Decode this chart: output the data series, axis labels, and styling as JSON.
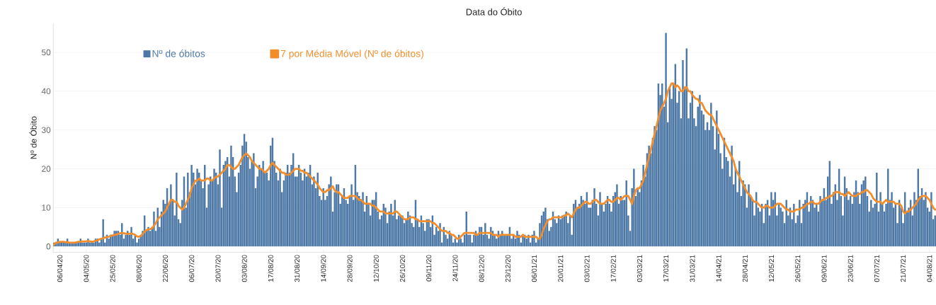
{
  "chart_data": {
    "type": "bar",
    "title": "Data do Óbito",
    "ylabel": "Nº de Óbito",
    "categories": [
      null,
      null,
      null,
      "06/04/20",
      null,
      null,
      null,
      null,
      null,
      null,
      null,
      null,
      null,
      null,
      null,
      null,
      null,
      "04/05/20",
      null,
      null,
      null,
      null,
      null,
      null,
      null,
      null,
      null,
      null,
      null,
      null,
      null,
      "25/05/20",
      null,
      null,
      null,
      null,
      null,
      null,
      null,
      null,
      null,
      null,
      null,
      null,
      null,
      "08/06/20",
      null,
      null,
      null,
      null,
      null,
      null,
      null,
      null,
      null,
      null,
      null,
      null,
      null,
      "22/06/20",
      null,
      null,
      null,
      null,
      null,
      null,
      null,
      null,
      null,
      null,
      null,
      null,
      null,
      "06/07/20",
      null,
      null,
      null,
      null,
      null,
      null,
      null,
      null,
      null,
      null,
      null,
      null,
      null,
      "20/07/20",
      null,
      null,
      null,
      null,
      null,
      null,
      null,
      null,
      null,
      null,
      null,
      null,
      null,
      "03/08/20",
      null,
      null,
      null,
      null,
      null,
      null,
      null,
      null,
      null,
      null,
      null,
      null,
      null,
      "17/08/20",
      null,
      null,
      null,
      null,
      null,
      null,
      null,
      null,
      null,
      null,
      null,
      null,
      null,
      "31/08/20",
      null,
      null,
      null,
      null,
      null,
      null,
      null,
      null,
      null,
      null,
      null,
      null,
      null,
      "14/09/20",
      null,
      null,
      null,
      null,
      null,
      null,
      null,
      null,
      null,
      null,
      null,
      null,
      null,
      "28/09/20",
      null,
      null,
      null,
      null,
      null,
      null,
      null,
      null,
      null,
      null,
      null,
      null,
      null,
      "12/10/20",
      null,
      null,
      null,
      null,
      null,
      null,
      null,
      null,
      null,
      null,
      null,
      null,
      null,
      "26/10/20",
      null,
      null,
      null,
      null,
      null,
      null,
      null,
      null,
      null,
      null,
      null,
      null,
      null,
      "09/11/20",
      null,
      null,
      null,
      null,
      null,
      null,
      null,
      null,
      null,
      null,
      null,
      null,
      null,
      "24/11/20",
      null,
      null,
      null,
      null,
      null,
      null,
      null,
      null,
      null,
      null,
      null,
      null,
      null,
      "08/12/20",
      null,
      null,
      null,
      null,
      null,
      null,
      null,
      null,
      null,
      null,
      null,
      null,
      null,
      "23/12/20",
      null,
      null,
      null,
      null,
      null,
      null,
      null,
      null,
      null,
      null,
      null,
      null,
      null,
      "06/01/21",
      null,
      null,
      null,
      null,
      null,
      null,
      null,
      null,
      null,
      null,
      null,
      null,
      null,
      "20/01/21",
      null,
      null,
      null,
      null,
      null,
      null,
      null,
      null,
      null,
      null,
      null,
      null,
      null,
      "03/02/21",
      null,
      null,
      null,
      null,
      null,
      null,
      null,
      null,
      null,
      null,
      null,
      null,
      null,
      "17/02/21",
      null,
      null,
      null,
      null,
      null,
      null,
      null,
      null,
      null,
      null,
      null,
      null,
      null,
      "03/03/21",
      null,
      null,
      null,
      null,
      null,
      null,
      null,
      null,
      null,
      null,
      null,
      null,
      null,
      "17/03/21",
      null,
      null,
      null,
      null,
      null,
      null,
      null,
      null,
      null,
      null,
      null,
      null,
      null,
      "31/03/21",
      null,
      null,
      null,
      null,
      null,
      null,
      null,
      null,
      null,
      null,
      null,
      null,
      null,
      "14/04/21",
      null,
      null,
      null,
      null,
      null,
      null,
      null,
      null,
      null,
      null,
      null,
      null,
      null,
      "28/04/21",
      null,
      null,
      null,
      null,
      null,
      null,
      null,
      null,
      null,
      null,
      null,
      null,
      null,
      "12/05/21",
      null,
      null,
      null,
      null,
      null,
      null,
      null,
      null,
      null,
      null,
      null,
      null,
      null,
      "26/05/21",
      null,
      null,
      null,
      null,
      null,
      null,
      null,
      null,
      null,
      null,
      null,
      null,
      null,
      "09/06/21",
      null,
      null,
      null,
      null,
      null,
      null,
      null,
      null,
      null,
      null,
      null,
      null,
      null,
      "23/06/21",
      null,
      null,
      null,
      null,
      null,
      null,
      null,
      null,
      null,
      null,
      null,
      null,
      null,
      "07/07/21",
      null,
      null,
      null,
      null,
      null,
      null,
      null,
      null,
      null,
      null,
      null,
      null,
      null,
      "21/07/21",
      null,
      null,
      null,
      null,
      null,
      null,
      null,
      null,
      null,
      null,
      null,
      null,
      null,
      "04/08/21",
      null,
      null,
      null
    ],
    "series": [
      {
        "name": "Nº de óbitos",
        "color": "#4e79a7",
        "values": [
          1,
          1,
          2,
          1,
          1,
          1,
          1,
          2,
          1,
          1,
          1,
          1,
          1,
          1,
          2,
          1,
          1,
          1,
          2,
          1,
          1,
          1,
          2,
          2,
          1,
          2,
          7,
          1,
          3,
          2,
          3,
          3,
          4,
          4,
          4,
          3,
          6,
          2,
          3,
          4,
          3,
          5,
          2,
          3,
          1,
          2,
          3,
          4,
          8,
          4,
          5,
          4,
          5,
          9,
          4,
          10,
          5,
          9,
          12,
          11,
          15,
          11,
          16,
          12,
          8,
          19,
          7,
          6,
          12,
          18,
          10,
          19,
          14,
          21,
          19,
          16,
          20,
          19,
          17,
          15,
          21,
          10,
          16,
          18,
          17,
          20,
          19,
          16,
          25,
          10,
          21,
          22,
          23,
          18,
          26,
          23,
          18,
          14,
          19,
          21,
          26,
          29,
          27,
          23,
          20,
          22,
          24,
          15,
          18,
          21,
          20,
          22,
          19,
          19,
          17,
          26,
          28,
          22,
          19,
          17,
          20,
          14,
          17,
          19,
          21,
          19,
          21,
          24,
          18,
          18,
          21,
          19,
          17,
          20,
          18,
          19,
          21,
          16,
          18,
          15,
          19,
          13,
          12,
          15,
          12,
          13,
          16,
          18,
          9,
          14,
          16,
          16,
          11,
          13,
          15,
          12,
          11,
          13,
          16,
          12,
          21,
          14,
          13,
          12,
          14,
          9,
          13,
          11,
          8,
          12,
          12,
          14,
          9,
          7,
          8,
          11,
          10,
          6,
          9,
          11,
          8,
          12,
          7,
          8,
          8,
          8,
          6,
          7,
          9,
          8,
          6,
          5,
          12,
          7,
          5,
          8,
          6,
          4,
          7,
          7,
          5,
          8,
          3,
          5,
          4,
          6,
          1,
          5,
          3,
          2,
          4,
          3,
          1,
          2,
          1,
          3,
          2,
          1,
          3,
          9,
          3,
          3,
          1,
          3,
          4,
          3,
          5,
          5,
          3,
          6,
          3,
          2,
          5,
          4,
          3,
          2,
          4,
          3,
          4,
          3,
          3,
          3,
          5,
          2,
          3,
          2,
          4,
          3,
          1,
          3,
          3,
          2,
          3,
          1,
          3,
          4,
          1,
          2,
          6,
          8,
          9,
          10,
          7,
          4,
          5,
          9,
          7,
          6,
          8,
          7,
          8,
          8,
          9,
          6,
          8,
          3,
          11,
          12,
          10,
          11,
          13,
          12,
          11,
          14,
          10,
          10,
          12,
          15,
          11,
          8,
          14,
          11,
          9,
          11,
          13,
          11,
          9,
          13,
          14,
          16,
          11,
          13,
          12,
          12,
          17,
          8,
          4,
          15,
          20,
          13,
          15,
          14,
          17,
          21,
          18,
          24,
          26,
          24,
          28,
          31,
          30,
          42,
          39,
          42,
          36,
          55,
          32,
          41,
          38,
          42,
          47,
          37,
          40,
          33,
          48,
          41,
          51,
          33,
          37,
          40,
          33,
          31,
          36,
          39,
          35,
          34,
          30,
          32,
          30,
          37,
          31,
          25,
          35,
          29,
          24,
          20,
          28,
          23,
          22,
          18,
          26,
          16,
          20,
          14,
          22,
          13,
          17,
          16,
          10,
          16,
          13,
          12,
          8,
          14,
          10,
          9,
          11,
          6,
          11,
          12,
          8,
          14,
          12,
          14,
          8,
          11,
          10,
          9,
          6,
          12,
          8,
          10,
          7,
          11,
          6,
          8,
          12,
          6,
          11,
          12,
          14,
          9,
          13,
          12,
          10,
          11,
          9,
          13,
          12,
          15,
          12,
          18,
          22,
          11,
          14,
          16,
          12,
          20,
          13,
          8,
          18,
          15,
          12,
          13,
          11,
          14,
          17,
          14,
          11,
          16,
          17,
          18,
          13,
          9,
          12,
          10,
          11,
          19,
          9,
          14,
          11,
          9,
          11,
          20,
          12,
          14,
          10,
          11,
          6,
          12,
          10,
          6,
          14,
          9,
          10,
          12,
          8,
          14,
          12,
          20,
          13,
          15,
          12,
          14,
          10,
          9,
          14,
          7,
          8
        ]
      },
      {
        "name": "7 por Média Móvel (Nº de óbitos)",
        "type": "line",
        "color": "#f28e2b",
        "values": [
          0.5,
          1,
          1,
          1.2,
          1.2,
          1.2,
          1.1,
          1.1,
          1,
          1,
          1,
          1,
          1.1,
          1.2,
          1.2,
          1.3,
          1.3,
          1.3,
          1.4,
          1.3,
          1.2,
          1.3,
          1.5,
          1.6,
          1.8,
          2,
          2.1,
          2.3,
          2.4,
          2.5,
          2.7,
          2.8,
          3,
          3.1,
          3.2,
          3.4,
          3.5,
          3.4,
          3.3,
          3.2,
          3.3,
          3.3,
          3.2,
          3,
          2.6,
          2.5,
          2.7,
          3.2,
          3.8,
          4.2,
          4.4,
          4.5,
          4.7,
          5.3,
          6,
          7,
          7.5,
          8,
          8.5,
          9,
          10,
          11,
          12,
          12,
          11.5,
          11.5,
          10.5,
          10,
          9.5,
          10,
          11,
          12,
          13,
          15,
          16,
          17,
          17,
          17.5,
          17,
          17,
          17,
          17.5,
          17.5,
          17,
          17,
          17.5,
          18,
          18,
          18.5,
          19,
          19.5,
          20,
          21,
          21,
          20.5,
          20,
          20,
          20.5,
          21,
          22,
          23,
          23.5,
          24,
          23.5,
          23,
          22,
          21.5,
          21,
          20.5,
          20,
          20,
          19.5,
          19,
          19.5,
          20,
          21,
          21.5,
          21,
          20.5,
          20,
          19.5,
          19,
          19,
          18.5,
          18.5,
          18.5,
          19,
          19.5,
          20,
          20,
          20,
          19.5,
          19.5,
          19,
          19,
          18.5,
          18,
          17.5,
          17,
          16.5,
          16,
          15,
          14.5,
          14,
          14,
          14.5,
          14.5,
          15,
          15.5,
          14.5,
          14,
          14,
          13.5,
          13,
          12.5,
          12.5,
          12.5,
          13,
          13,
          13,
          13,
          12.5,
          12,
          12,
          11.5,
          11,
          11,
          11,
          11,
          10.5,
          10.5,
          10,
          9.5,
          9,
          9,
          9,
          8.5,
          8.5,
          8.5,
          8.5,
          8.5,
          9,
          9,
          8.5,
          8,
          7.5,
          7,
          7,
          7,
          7.5,
          7.5,
          7.5,
          7,
          7,
          6.5,
          6.5,
          6.5,
          6.5,
          6.5,
          6.5,
          6.5,
          6,
          6,
          5.5,
          5,
          4.5,
          4,
          4,
          4,
          3.5,
          3.5,
          3,
          3,
          2.5,
          2,
          2,
          2.5,
          3,
          3.5,
          3.5,
          3.5,
          3.5,
          3.5,
          3.5,
          3,
          3,
          3.5,
          3.5,
          3.5,
          3.5,
          3.5,
          3.5,
          3.5,
          3,
          3,
          3,
          2.5,
          3,
          3,
          3,
          3,
          3,
          3,
          3,
          3,
          2.5,
          2.5,
          2.5,
          2.5,
          3,
          2.5,
          2.5,
          2.5,
          2.5,
          2.5,
          2.5,
          2.5,
          2,
          2,
          3,
          4.5,
          5.5,
          6.5,
          7,
          7,
          7.5,
          7.5,
          7.5,
          7.5,
          7.5,
          7.5,
          8,
          8,
          8.5,
          8,
          7.5,
          8.5,
          9.5,
          10,
          10,
          10.5,
          11,
          11.5,
          11.5,
          11,
          11,
          11.5,
          12,
          12,
          11.5,
          11,
          11,
          11,
          11.5,
          12,
          12,
          11.5,
          11.5,
          12,
          12.5,
          12.5,
          12,
          12.5,
          13,
          13,
          13,
          12,
          11,
          13,
          14.5,
          15,
          15,
          16,
          17,
          19,
          21,
          23,
          25,
          27,
          29,
          31,
          33,
          35,
          36,
          37,
          38,
          40,
          41,
          42,
          42,
          41,
          41.5,
          41,
          40,
          40,
          41,
          41,
          40,
          40,
          39,
          38.5,
          38,
          38,
          37,
          37,
          36,
          35,
          34.5,
          34,
          34,
          33,
          32,
          31,
          30,
          29,
          28,
          27,
          26,
          25,
          24,
          23,
          22,
          20,
          19,
          18,
          17,
          16,
          15,
          14,
          13.5,
          13,
          12,
          11.5,
          11.5,
          11,
          10.5,
          10,
          10,
          10.5,
          10.5,
          10,
          10,
          10,
          10.5,
          11,
          11,
          11,
          10.5,
          10,
          9.5,
          9.5,
          9,
          9,
          9,
          9.5,
          9.5,
          9.5,
          10,
          10,
          10.5,
          11,
          11,
          11.5,
          11.5,
          11,
          11,
          11,
          11.5,
          12,
          12,
          12.5,
          12.5,
          13,
          13,
          13.5,
          14,
          14,
          14,
          13.5,
          13.5,
          13,
          13.5,
          14,
          13.5,
          13,
          13,
          13,
          13.5,
          13.5,
          14,
          14,
          14.5,
          14.5,
          14,
          13.5,
          12.5,
          12,
          11.5,
          11.5,
          11.5,
          11,
          11.5,
          12,
          11.5,
          11.5,
          11.5,
          11.5,
          11,
          11,
          11,
          10.5,
          9,
          8.5,
          9,
          9,
          9.5,
          10,
          10.5,
          11,
          12,
          12.5,
          13,
          13,
          13,
          12.5,
          12,
          11,
          10,
          9.5
        ]
      }
    ],
    "ylim": [
      -1.5,
      57.5
    ],
    "yticks": [
      0,
      10,
      20,
      30,
      40,
      50
    ],
    "grid": "y",
    "legend": "top left"
  }
}
